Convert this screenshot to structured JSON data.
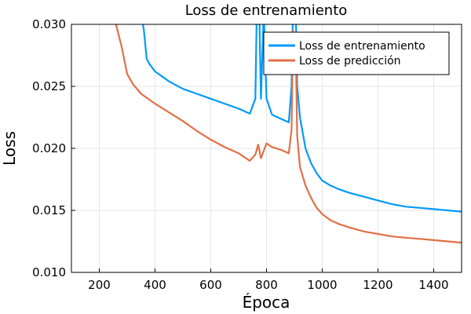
{
  "chart_data": {
    "type": "line",
    "title": "Loss de entrenamiento",
    "xlabel": "Época",
    "ylabel": "Loss",
    "xlim": [
      100,
      1500
    ],
    "ylim": [
      0.01,
      0.03
    ],
    "x_ticks": [
      200,
      400,
      600,
      800,
      1000,
      1200,
      1400
    ],
    "y_ticks": [
      0.01,
      0.015,
      0.02,
      0.025,
      0.03
    ],
    "y_tick_labels": [
      "0.010",
      "0.015",
      "0.020",
      "0.025",
      "0.030"
    ],
    "grid": true,
    "legend_position": "top-right",
    "series": [
      {
        "name": "Loss de entrenamiento",
        "color": "#009af9",
        "points": [
          [
            350,
            0.031
          ],
          [
            360,
            0.0295
          ],
          [
            370,
            0.0272
          ],
          [
            380,
            0.0268
          ],
          [
            400,
            0.0262
          ],
          [
            450,
            0.0254
          ],
          [
            500,
            0.0248
          ],
          [
            550,
            0.0244
          ],
          [
            600,
            0.024
          ],
          [
            650,
            0.0236
          ],
          [
            700,
            0.0232
          ],
          [
            740,
            0.0228
          ],
          [
            760,
            0.024
          ],
          [
            765,
            0.031
          ],
          [
            775,
            0.03
          ],
          [
            780,
            0.024
          ],
          [
            790,
            0.031
          ],
          [
            800,
            0.024
          ],
          [
            820,
            0.0227
          ],
          [
            850,
            0.0224
          ],
          [
            880,
            0.0221
          ],
          [
            890,
            0.025
          ],
          [
            895,
            0.031
          ],
          [
            905,
            0.031
          ],
          [
            910,
            0.025
          ],
          [
            920,
            0.0225
          ],
          [
            940,
            0.02
          ],
          [
            960,
            0.0188
          ],
          [
            980,
            0.018
          ],
          [
            1000,
            0.0174
          ],
          [
            1030,
            0.017
          ],
          [
            1060,
            0.0167
          ],
          [
            1100,
            0.0164
          ],
          [
            1150,
            0.0161
          ],
          [
            1200,
            0.0158
          ],
          [
            1250,
            0.0155
          ],
          [
            1300,
            0.0153
          ],
          [
            1350,
            0.0152
          ],
          [
            1400,
            0.0151
          ],
          [
            1450,
            0.015
          ],
          [
            1500,
            0.0149
          ]
        ]
      },
      {
        "name": "Loss de predicción",
        "color": "#e26f46",
        "points": [
          [
            250,
            0.031
          ],
          [
            260,
            0.03
          ],
          [
            280,
            0.0282
          ],
          [
            300,
            0.026
          ],
          [
            320,
            0.0252
          ],
          [
            350,
            0.0244
          ],
          [
            400,
            0.0236
          ],
          [
            450,
            0.0229
          ],
          [
            500,
            0.0222
          ],
          [
            550,
            0.0214
          ],
          [
            600,
            0.0207
          ],
          [
            650,
            0.0201
          ],
          [
            700,
            0.0196
          ],
          [
            740,
            0.019
          ],
          [
            760,
            0.0195
          ],
          [
            770,
            0.0203
          ],
          [
            780,
            0.0192
          ],
          [
            800,
            0.0204
          ],
          [
            820,
            0.0201
          ],
          [
            850,
            0.0199
          ],
          [
            880,
            0.0196
          ],
          [
            890,
            0.0215
          ],
          [
            895,
            0.0295
          ],
          [
            905,
            0.028
          ],
          [
            910,
            0.021
          ],
          [
            920,
            0.0185
          ],
          [
            940,
            0.017
          ],
          [
            960,
            0.016
          ],
          [
            980,
            0.0152
          ],
          [
            1000,
            0.0147
          ],
          [
            1030,
            0.0142
          ],
          [
            1060,
            0.0139
          ],
          [
            1100,
            0.0136
          ],
          [
            1150,
            0.0133
          ],
          [
            1200,
            0.0131
          ],
          [
            1250,
            0.0129
          ],
          [
            1300,
            0.0128
          ],
          [
            1350,
            0.0127
          ],
          [
            1400,
            0.0126
          ],
          [
            1450,
            0.0125
          ],
          [
            1500,
            0.0124
          ]
        ]
      }
    ]
  }
}
